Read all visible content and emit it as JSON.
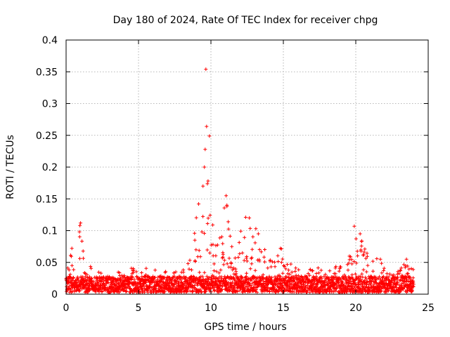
{
  "chart_data": {
    "type": "scatter",
    "title": "Day 180 of 2024, Rate Of TEC Index for receiver chpg",
    "xlabel": "GPS time / hours",
    "ylabel": "ROTI / TECUs",
    "xlim": [
      0,
      25
    ],
    "ylim": [
      0,
      0.4
    ],
    "grid": true,
    "marker": "plus",
    "color": "#ff0000",
    "x_ticks": [
      "0",
      "5",
      "10",
      "15",
      "20",
      "25"
    ],
    "y_ticks": [
      "0",
      "0.05",
      "0.1",
      "0.15",
      "0.2",
      "0.25",
      "0.3",
      "0.35",
      "0.4"
    ],
    "series": [
      {
        "name": "ROTI",
        "envelope_note": "approximate upper envelope of the dense point cloud (hour, ROTI)",
        "envelope": [
          [
            0.0,
            0.03
          ],
          [
            0.3,
            0.072
          ],
          [
            0.6,
            0.045
          ],
          [
            0.8,
            0.095
          ],
          [
            1.0,
            0.112
          ],
          [
            1.3,
            0.035
          ],
          [
            1.6,
            0.048
          ],
          [
            2.0,
            0.03
          ],
          [
            2.5,
            0.035
          ],
          [
            3.0,
            0.03
          ],
          [
            3.5,
            0.032
          ],
          [
            4.0,
            0.03
          ],
          [
            4.5,
            0.04
          ],
          [
            5.0,
            0.035
          ],
          [
            5.3,
            0.048
          ],
          [
            5.8,
            0.03
          ],
          [
            6.5,
            0.04
          ],
          [
            7.0,
            0.03
          ],
          [
            7.5,
            0.035
          ],
          [
            8.0,
            0.032
          ],
          [
            8.5,
            0.05
          ],
          [
            8.8,
            0.09
          ],
          [
            9.0,
            0.142
          ],
          [
            9.2,
            0.12
          ],
          [
            9.4,
            0.17
          ],
          [
            9.5,
            0.205
          ],
          [
            9.6,
            0.228
          ],
          [
            9.7,
            0.2
          ],
          [
            9.8,
            0.178
          ],
          [
            10.0,
            0.17
          ],
          [
            10.2,
            0.135
          ],
          [
            10.5,
            0.08
          ],
          [
            10.8,
            0.11
          ],
          [
            11.0,
            0.155
          ],
          [
            11.2,
            0.13
          ],
          [
            11.5,
            0.06
          ],
          [
            12.0,
            0.09
          ],
          [
            12.3,
            0.12
          ],
          [
            12.6,
            0.115
          ],
          [
            13.0,
            0.1
          ],
          [
            13.5,
            0.09
          ],
          [
            14.0,
            0.06
          ],
          [
            14.5,
            0.055
          ],
          [
            14.8,
            0.072
          ],
          [
            15.2,
            0.05
          ],
          [
            15.5,
            0.045
          ],
          [
            16.0,
            0.04
          ],
          [
            16.5,
            0.035
          ],
          [
            17.0,
            0.04
          ],
          [
            17.5,
            0.038
          ],
          [
            18.0,
            0.035
          ],
          [
            18.5,
            0.04
          ],
          [
            19.0,
            0.045
          ],
          [
            19.5,
            0.06
          ],
          [
            19.9,
            0.105
          ],
          [
            20.2,
            0.1
          ],
          [
            20.5,
            0.08
          ],
          [
            21.0,
            0.05
          ],
          [
            21.5,
            0.055
          ],
          [
            22.0,
            0.04
          ],
          [
            22.5,
            0.03
          ],
          [
            23.0,
            0.035
          ],
          [
            23.5,
            0.055
          ],
          [
            24.0,
            0.048
          ]
        ],
        "outliers": [
          [
            9.65,
            0.354
          ],
          [
            9.7,
            0.264
          ],
          [
            9.9,
            0.249
          ],
          [
            9.6,
            0.228
          ],
          [
            9.55,
            0.2
          ],
          [
            9.8,
            0.178
          ],
          [
            9.15,
            0.142
          ],
          [
            9.45,
            0.17
          ],
          [
            11.05,
            0.155
          ],
          [
            11.1,
            0.14
          ],
          [
            1.0,
            0.112
          ],
          [
            0.95,
            0.108
          ],
          [
            0.4,
            0.072
          ],
          [
            19.9,
            0.107
          ],
          [
            20.3,
            0.095
          ],
          [
            20.4,
            0.083
          ],
          [
            12.4,
            0.121
          ],
          [
            12.65,
            0.12
          ],
          [
            13.1,
            0.103
          ],
          [
            14.8,
            0.072
          ],
          [
            23.5,
            0.055
          ],
          [
            21.7,
            0.055
          ]
        ]
      }
    ]
  }
}
